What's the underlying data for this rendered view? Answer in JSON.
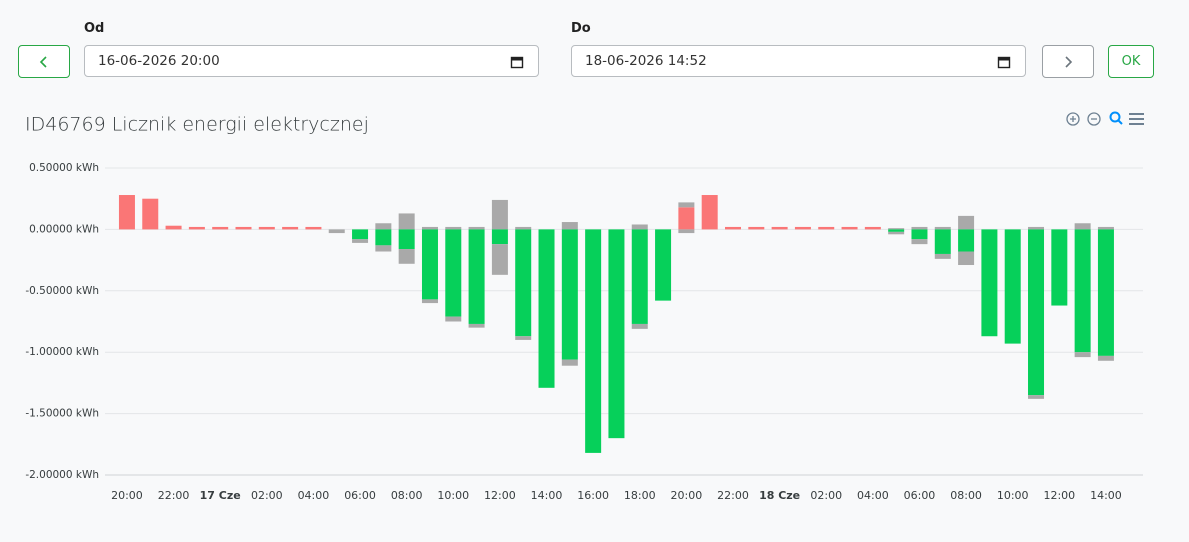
{
  "form": {
    "from_label": "Od",
    "from_value": "16-06-2026 20:00",
    "to_label": "Do",
    "to_value": "18-06-2026 14:52",
    "ok": "OK"
  },
  "chart_data": {
    "type": "bar",
    "stacked": true,
    "title": "ID46769 Licznik energii elektrycznej",
    "categories": [
      "20:00",
      null,
      "22:00",
      null,
      "17 Cze",
      null,
      "02:00",
      null,
      "04:00",
      null,
      "06:00",
      null,
      "08:00",
      null,
      "10:00",
      null,
      "12:00",
      null,
      "14:00",
      null,
      "16:00",
      null,
      "18:00",
      null,
      "20:00",
      null,
      "22:00",
      null,
      "18 Cze",
      null,
      "02:00",
      null,
      "04:00",
      null,
      "06:00",
      null,
      "08:00",
      null,
      "10:00",
      null,
      "12:00",
      null,
      "14:00"
    ],
    "series": [
      {
        "color": "#fa7676",
        "values": [
          0.28,
          0.25,
          0.03,
          0.02,
          0.02,
          0.02,
          0.02,
          0.02,
          0.02,
          null,
          null,
          null,
          null,
          null,
          null,
          null,
          null,
          null,
          null,
          null,
          null,
          null,
          null,
          null,
          0.18,
          0.28,
          0.02,
          0.02,
          0.02,
          0.02,
          0.02,
          0.02,
          0.02,
          null,
          null,
          null,
          null,
          null,
          null,
          null,
          null,
          null,
          null
        ]
      },
      {
        "color": "#a9a9a9",
        "values": [
          null,
          null,
          null,
          null,
          null,
          null,
          null,
          null,
          null,
          null,
          null,
          0.05,
          0.13,
          0.02,
          0.02,
          0.02,
          0.24,
          0.02,
          null,
          0.06,
          null,
          null,
          0.04,
          null,
          0.04,
          null,
          null,
          null,
          null,
          null,
          null,
          null,
          null,
          0.01,
          0.02,
          0.02,
          0.11,
          null,
          null,
          0.02,
          null,
          0.05,
          0.02
        ]
      },
      {
        "color": "#06d05a",
        "values": [
          null,
          null,
          null,
          null,
          null,
          null,
          null,
          null,
          null,
          null,
          -0.08,
          -0.13,
          -0.16,
          -0.57,
          -0.71,
          -0.77,
          -0.12,
          -0.87,
          -1.29,
          -1.06,
          -1.82,
          -1.7,
          -0.77,
          -0.58,
          null,
          null,
          null,
          null,
          null,
          null,
          null,
          null,
          null,
          -0.02,
          -0.08,
          -0.2,
          -0.18,
          -0.87,
          -0.93,
          -1.35,
          -0.62,
          -1.0,
          -1.03
        ]
      },
      {
        "color": "#a9a9a9",
        "values": [
          null,
          null,
          null,
          null,
          null,
          null,
          null,
          null,
          null,
          -0.03,
          -0.03,
          -0.05,
          -0.12,
          -0.03,
          -0.04,
          -0.03,
          -0.25,
          -0.03,
          null,
          -0.05,
          null,
          null,
          -0.04,
          null,
          -0.03,
          null,
          null,
          null,
          null,
          null,
          null,
          null,
          null,
          -0.02,
          -0.04,
          -0.04,
          -0.11,
          null,
          null,
          -0.03,
          null,
          -0.04,
          -0.04
        ]
      }
    ],
    "ylim": [
      -2,
      0.5
    ],
    "yticks": [
      {
        "value": 0.5,
        "label": "0.50000 kWh"
      },
      {
        "value": 0,
        "label": "0.00000 kWh"
      },
      {
        "value": -0.5,
        "label": "-0.50000 kWh"
      },
      {
        "value": -1,
        "label": "-1.00000 kWh"
      },
      {
        "value": -1.5,
        "label": "-1.50000 kWh"
      },
      {
        "value": -2,
        "label": "-2.00000 kWh"
      }
    ],
    "grid": true
  }
}
